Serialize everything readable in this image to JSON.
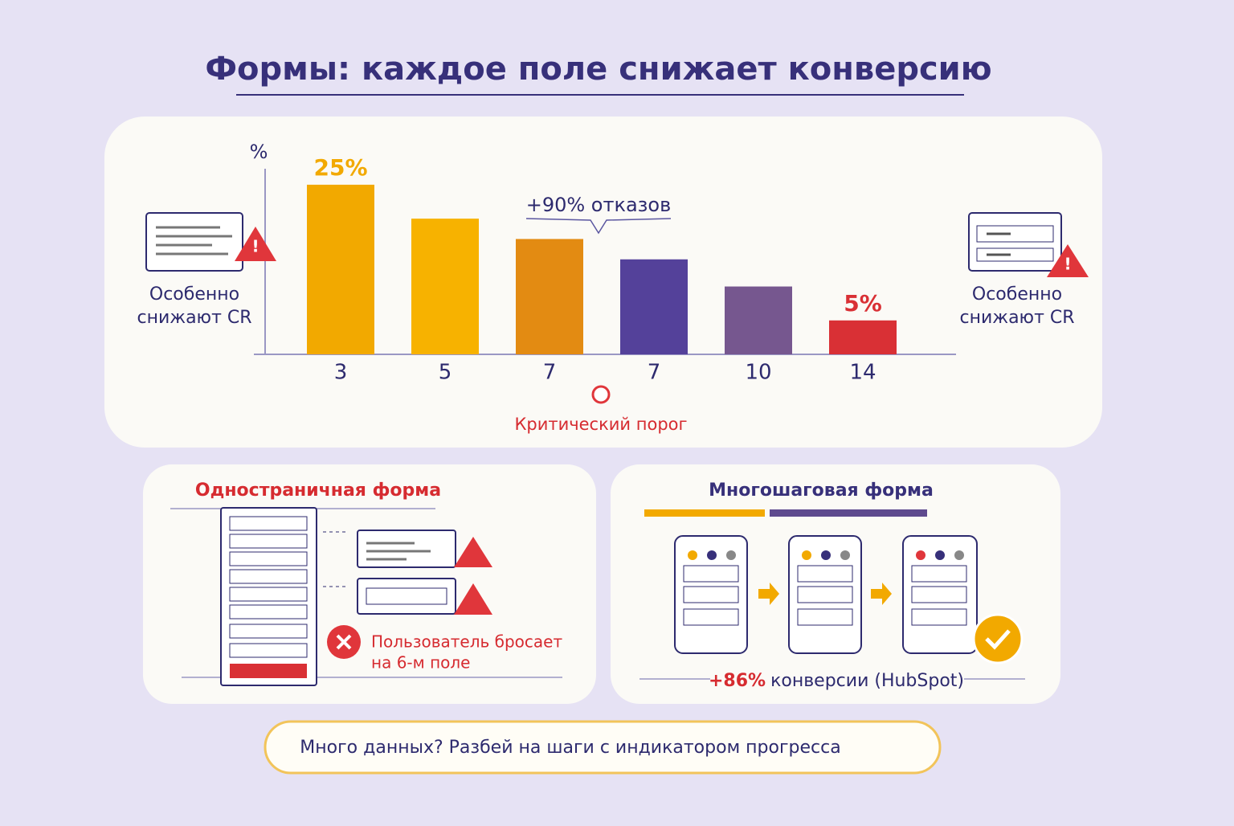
{
  "title": "Формы: каждое поле снижает конверсию",
  "chart_data": {
    "type": "bar",
    "y_label": "%",
    "categories": [
      "3",
      "5",
      "7",
      "7",
      "10",
      "14"
    ],
    "values": [
      25,
      20,
      17,
      14,
      10,
      5
    ],
    "value_labels": [
      "25%",
      null,
      null,
      null,
      null,
      "5%"
    ],
    "colors": [
      "#f2a900",
      "#f7b200",
      "#e38b12",
      "#54419a",
      "#76578f",
      "#d93035"
    ],
    "ylim": [
      0,
      27
    ],
    "annotation": "+90% отказов",
    "threshold_label": "Критический порог"
  },
  "side_notes": {
    "left": [
      "Особенно",
      "снижают CR"
    ],
    "right": [
      "Особенно",
      "снижают CR"
    ]
  },
  "single_page": {
    "title": "Одностраничная форма",
    "note": [
      "Пользователь бросает",
      "на 6-м поле"
    ]
  },
  "multi_step": {
    "title": "Многошаговая форма",
    "result_value": "+86%",
    "result_text": "конверсии (HubSpot)"
  },
  "tip": "Много данных? Разбей на шаги с индикатором прогресса"
}
